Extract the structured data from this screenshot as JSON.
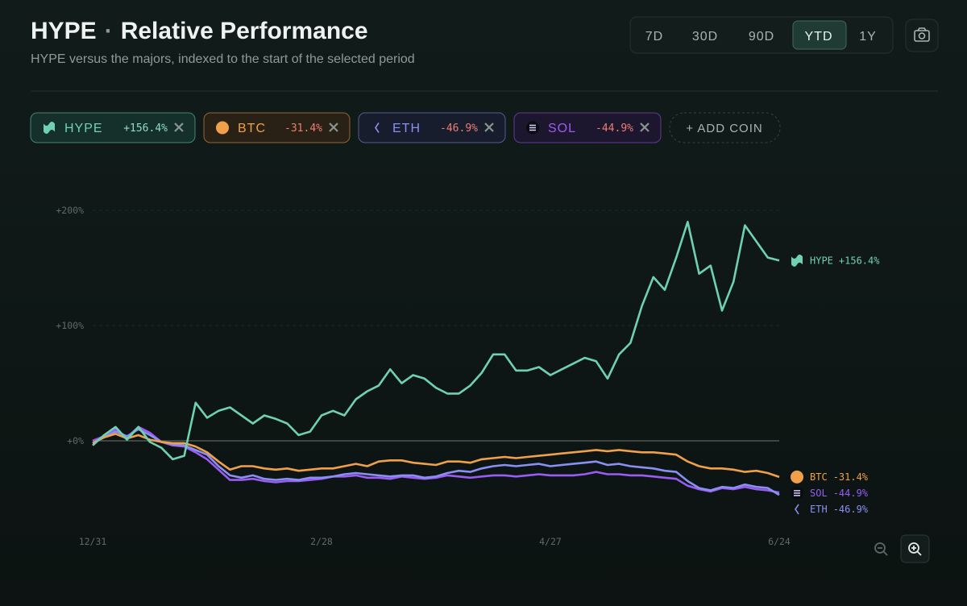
{
  "header": {
    "title_coin": "HYPE",
    "separator": "·",
    "title": "Relative Performance",
    "subtitle": "HYPE versus the majors, indexed to the start of the selected period"
  },
  "periods": [
    "7D",
    "30D",
    "90D",
    "YTD",
    "1Y"
  ],
  "active_period": "YTD",
  "add_coin": "+ ADD COIN",
  "chart_data": {
    "type": "line",
    "categories": [
      "12/31",
      null,
      null,
      null,
      null,
      null,
      null,
      null,
      null,
      null,
      null,
      null,
      null,
      null,
      null,
      null,
      null,
      null,
      null,
      null,
      "2/28",
      null,
      null,
      null,
      null,
      null,
      null,
      null,
      null,
      null,
      null,
      null,
      null,
      null,
      null,
      null,
      null,
      null,
      null,
      null,
      "4/27",
      null,
      null,
      null,
      null,
      null,
      null,
      null,
      null,
      null,
      null,
      null,
      null,
      null,
      null,
      null,
      null,
      null,
      null,
      null,
      "6/24"
    ],
    "series": [
      {
        "name": "HYPE",
        "color": "#6fd1b2",
        "end_label": "+156.4%",
        "values": [
          -4,
          5,
          12,
          1,
          12,
          -1,
          -6,
          -16,
          -13,
          33,
          20,
          26,
          29,
          22,
          15,
          22,
          19,
          15,
          5,
          8,
          22,
          26,
          22,
          36,
          43,
          48,
          62,
          50,
          57,
          54,
          46,
          41,
          41,
          48,
          59,
          75,
          75,
          61,
          61,
          64,
          57,
          62,
          67,
          72,
          69,
          54,
          75,
          85,
          117,
          142,
          131,
          159,
          190,
          145,
          152,
          113,
          138,
          187,
          173,
          159,
          156.4
        ]
      },
      {
        "name": "BTC",
        "color": "#f0a04b",
        "end_label": "-31.4%",
        "values": [
          -2,
          3,
          6,
          2,
          5,
          1,
          -1,
          -2,
          -2,
          -5,
          -10,
          -18,
          -25,
          -22,
          -22,
          -24,
          -25,
          -24,
          -26,
          -25,
          -24,
          -24,
          -22,
          -20,
          -22,
          -18,
          -17,
          -17,
          -19,
          -20,
          -21,
          -18,
          -18,
          -19,
          -16,
          -15,
          -14,
          -15,
          -14,
          -13,
          -12,
          -11,
          -10,
          -9,
          -8,
          -9,
          -8,
          -9,
          -10,
          -10,
          -11,
          -12,
          -18,
          -22,
          -24,
          -24,
          -25,
          -27,
          -26,
          -28,
          -31.4
        ]
      },
      {
        "name": "ETH",
        "color": "#8a8ff2",
        "end_label": "-46.9%",
        "values": [
          -2,
          3,
          8,
          4,
          10,
          5,
          -1,
          -3,
          -4,
          -8,
          -12,
          -22,
          -30,
          -32,
          -30,
          -33,
          -34,
          -33,
          -34,
          -32,
          -32,
          -31,
          -29,
          -28,
          -29,
          -30,
          -31,
          -30,
          -30,
          -32,
          -31,
          -28,
          -26,
          -27,
          -24,
          -22,
          -21,
          -22,
          -21,
          -20,
          -22,
          -21,
          -20,
          -19,
          -18,
          -21,
          -20,
          -22,
          -23,
          -24,
          -26,
          -27,
          -35,
          -41,
          -43,
          -40,
          -41,
          -38,
          -40,
          -41,
          -46.9
        ]
      },
      {
        "name": "SOL",
        "color": "#9a5cf2",
        "end_label": "-44.9%",
        "values": [
          0,
          4,
          10,
          3,
          12,
          7,
          -1,
          -4,
          -5,
          -10,
          -16,
          -25,
          -34,
          -34,
          -33,
          -35,
          -36,
          -35,
          -35,
          -34,
          -33,
          -31,
          -31,
          -30,
          -32,
          -32,
          -33,
          -31,
          -32,
          -33,
          -32,
          -30,
          -31,
          -32,
          -31,
          -30,
          -30,
          -31,
          -30,
          -29,
          -30,
          -30,
          -30,
          -29,
          -27,
          -29,
          -29,
          -30,
          -30,
          -31,
          -32,
          -33,
          -39,
          -42,
          -44,
          -41,
          -42,
          -40,
          -42,
          -43,
          -44.9
        ]
      }
    ],
    "ylim": [
      -80,
      215
    ],
    "yticks": [
      {
        "value": 0,
        "label": "+0%"
      },
      {
        "value": 100,
        "label": "+100%"
      },
      {
        "value": 200,
        "label": "+200%"
      }
    ],
    "grid": true
  }
}
